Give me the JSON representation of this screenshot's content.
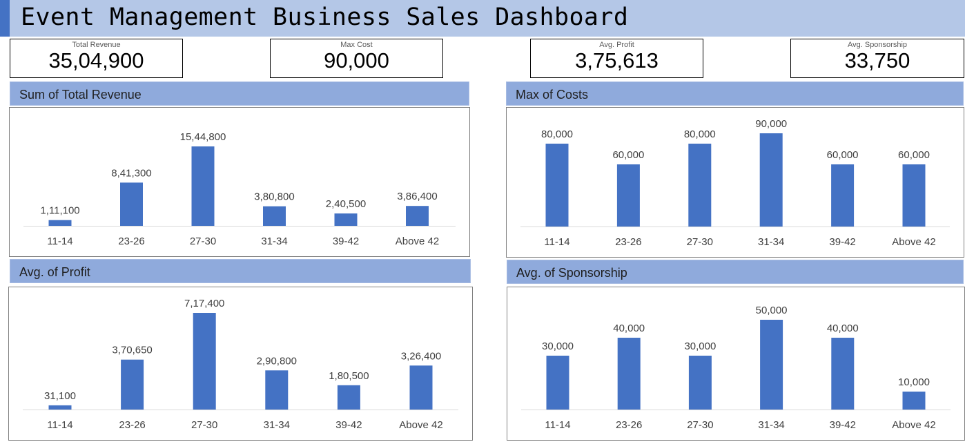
{
  "header": {
    "title": "Event Management Business Sales Dashboard"
  },
  "colors": {
    "title_bg": "#b4c7e7",
    "accent": "#4472c4",
    "panel_header": "#8faadc",
    "bar": "#4472c4"
  },
  "kpis": [
    {
      "label": "Total Revenue",
      "value": "35,04,900"
    },
    {
      "label": "Max Cost",
      "value": "90,000"
    },
    {
      "label": "Avg. Profit",
      "value": "3,75,613"
    },
    {
      "label": "Avg. Sponsorship",
      "value": "33,750"
    }
  ],
  "panels": [
    {
      "title": "Sum of Total Revenue"
    },
    {
      "title": "Max of Costs"
    },
    {
      "title": "Avg. of Profit"
    },
    {
      "title": "Avg. of Sponsorship"
    }
  ],
  "chart_data": [
    {
      "type": "bar",
      "title": "Sum of Total Revenue",
      "categories": [
        "11-14",
        "23-26",
        "27-30",
        "31-34",
        "39-42",
        "Above 42"
      ],
      "values": [
        111100,
        841300,
        1544800,
        380800,
        240500,
        386400
      ],
      "data_labels": [
        "1,11,100",
        "8,41,300",
        "15,44,800",
        "3,80,800",
        "2,40,500",
        "3,86,400"
      ],
      "ylim": [
        0,
        1600000
      ],
      "grid": false,
      "legend": "none"
    },
    {
      "type": "bar",
      "title": "Max of Costs",
      "categories": [
        "11-14",
        "23-26",
        "27-30",
        "31-34",
        "39-42",
        "Above 42"
      ],
      "values": [
        80000,
        60000,
        80000,
        90000,
        60000,
        60000
      ],
      "data_labels": [
        "80,000",
        "60,000",
        "80,000",
        "90,000",
        "60,000",
        "60,000"
      ],
      "ylim": [
        0,
        100000
      ],
      "grid": false,
      "legend": "none"
    },
    {
      "type": "bar",
      "title": "Avg. of Profit",
      "categories": [
        "11-14",
        "23-26",
        "27-30",
        "31-34",
        "39-42",
        "Above 42"
      ],
      "values": [
        31100,
        370650,
        717400,
        290800,
        180500,
        326400
      ],
      "data_labels": [
        "31,100",
        "3,70,650",
        "7,17,400",
        "2,90,800",
        "1,80,500",
        "3,26,400"
      ],
      "ylim": [
        0,
        800000
      ],
      "grid": false,
      "legend": "none"
    },
    {
      "type": "bar",
      "title": "Avg. of Sponsorship",
      "categories": [
        "11-14",
        "23-26",
        "27-30",
        "31-34",
        "39-42",
        "Above 42"
      ],
      "values": [
        30000,
        40000,
        30000,
        50000,
        40000,
        10000
      ],
      "data_labels": [
        "30,000",
        "40,000",
        "30,000",
        "50,000",
        "40,000",
        "10,000"
      ],
      "ylim": [
        0,
        60000
      ],
      "grid": false,
      "legend": "none"
    }
  ]
}
